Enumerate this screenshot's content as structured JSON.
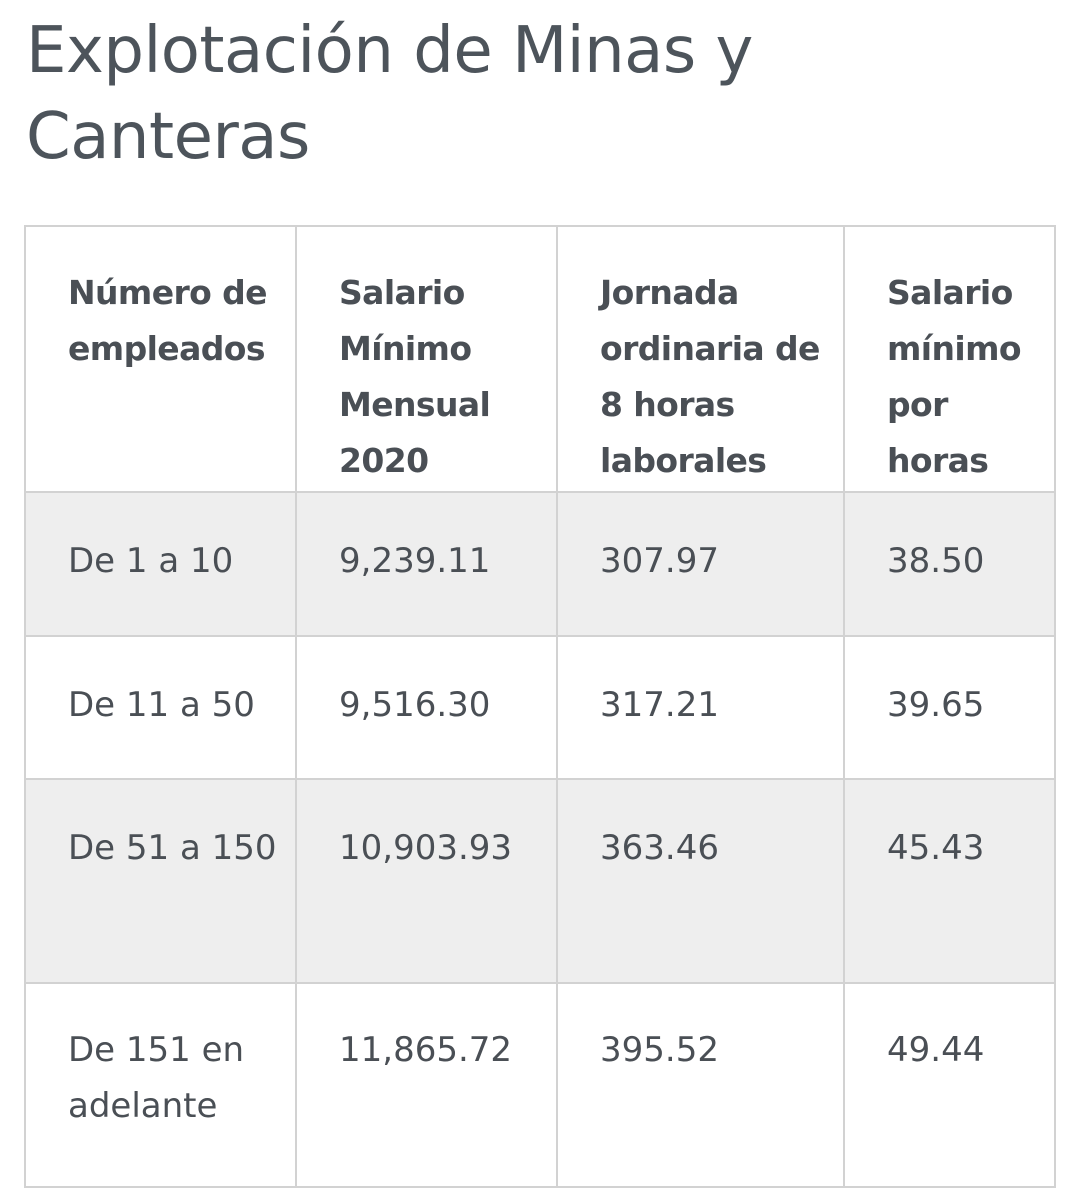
{
  "title": "Explotación de Minas y Canteras",
  "table": {
    "headers": [
      "Número de empleados",
      "Salario Mínimo Mensual 2020",
      "Jornada ordinaria de 8 horas laborales",
      "Salario mínimo por horas"
    ],
    "rows": [
      [
        "De 1 a 10",
        "9,239.11",
        "307.97",
        "38.50"
      ],
      [
        "De 11 a 50",
        "9,516.30",
        "317.21",
        "39.65"
      ],
      [
        "De 51 a 150",
        "10,903.93",
        "363.46",
        "45.43"
      ],
      [
        "De 151 en adelante",
        "11,865.72",
        "395.52",
        "49.44"
      ]
    ]
  },
  "colors": {
    "text": "#4a4f55",
    "row_shade": "#eeeeee",
    "border": "#d2d2d2"
  }
}
